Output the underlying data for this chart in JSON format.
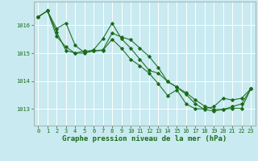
{
  "bg_color": "#c8eaf0",
  "grid_color": "#ffffff",
  "line_color": "#1a6b1a",
  "marker_color": "#1a6b1a",
  "xlabel": "Graphe pression niveau de la mer (hPa)",
  "xlabel_fontsize": 6.5,
  "tick_fontsize": 5.0,
  "ylim": [
    1012.4,
    1016.85
  ],
  "xlim": [
    -0.5,
    23.5
  ],
  "yticks": [
    1013,
    1014,
    1015,
    1016
  ],
  "xticks": [
    0,
    1,
    2,
    3,
    4,
    5,
    6,
    7,
    8,
    9,
    10,
    11,
    12,
    13,
    14,
    15,
    16,
    17,
    18,
    19,
    20,
    21,
    22,
    23
  ],
  "series1_x": [
    0,
    1,
    2,
    3,
    4,
    5,
    6,
    7,
    8,
    9,
    10,
    11,
    12,
    13,
    14,
    15,
    16,
    17,
    18,
    19,
    20,
    21,
    22,
    23
  ],
  "series1_y": [
    1016.3,
    1016.52,
    1015.75,
    1015.1,
    1015.0,
    1015.08,
    1015.08,
    1015.1,
    1015.5,
    1015.18,
    1014.78,
    1014.55,
    1014.28,
    1013.9,
    1013.48,
    1013.68,
    1013.18,
    1013.0,
    1013.0,
    1013.08,
    1013.38,
    1013.32,
    1013.38,
    1013.72
  ],
  "series2_x": [
    0,
    1,
    2,
    3,
    4,
    5,
    6,
    7,
    8,
    9,
    10,
    11,
    12,
    13,
    14,
    15,
    16,
    17,
    18,
    19,
    20,
    21,
    22,
    23
  ],
  "series2_y": [
    1016.3,
    1016.52,
    1015.6,
    1015.22,
    1015.0,
    1015.0,
    1015.08,
    1015.12,
    1015.72,
    1015.58,
    1015.48,
    1015.18,
    1014.88,
    1014.48,
    1013.98,
    1013.78,
    1013.58,
    1013.32,
    1013.1,
    1012.98,
    1012.98,
    1013.08,
    1013.18,
    1013.72
  ],
  "series3_x": [
    0,
    1,
    2,
    3,
    4,
    5,
    6,
    7,
    8,
    9,
    10,
    11,
    12,
    13,
    14,
    15,
    16,
    17,
    18,
    19,
    20,
    21,
    22,
    23
  ],
  "series3_y": [
    1016.3,
    1016.52,
    1015.88,
    1016.08,
    1015.28,
    1015.02,
    1015.12,
    1015.52,
    1016.08,
    1015.52,
    1015.18,
    1014.78,
    1014.38,
    1014.28,
    1013.98,
    1013.78,
    1013.52,
    1013.18,
    1012.98,
    1012.92,
    1012.98,
    1013.02,
    1013.02,
    1013.72
  ]
}
